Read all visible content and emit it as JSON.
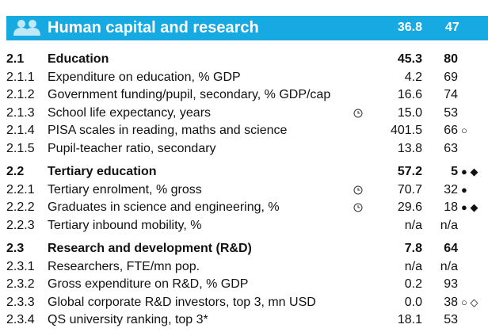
{
  "header": {
    "title": "Human capital and research",
    "score": "36.8",
    "rank": "47"
  },
  "rows": [
    {
      "code": "2.1",
      "label": "Education",
      "score": "45.3",
      "rank": "80",
      "marks": ""
    },
    {
      "code": "2.1.1",
      "label": "Expenditure on education, % GDP",
      "score": "4.2",
      "rank": "69",
      "marks": ""
    },
    {
      "code": "2.1.2",
      "label": "Government funding/pupil, secondary, % GDP/cap",
      "score": "16.6",
      "rank": "74",
      "marks": ""
    },
    {
      "code": "2.1.3",
      "label": "School life expectancy, years",
      "score": "15.0",
      "rank": "53",
      "marks": ""
    },
    {
      "code": "2.1.4",
      "label": "PISA scales in reading, maths and science",
      "score": "401.5",
      "rank": "66",
      "marks": "○"
    },
    {
      "code": "2.1.5",
      "label": "Pupil-teacher ratio, secondary",
      "score": "13.8",
      "rank": "63",
      "marks": ""
    },
    {
      "code": "2.2",
      "label": "Tertiary education",
      "score": "57.2",
      "rank": "5",
      "marks": "● ◆"
    },
    {
      "code": "2.2.1",
      "label": "Tertiary enrolment, % gross",
      "score": "70.7",
      "rank": "32",
      "marks": "●"
    },
    {
      "code": "2.2.2",
      "label": "Graduates in science and engineering, %",
      "score": "29.6",
      "rank": "18",
      "marks": "● ◆"
    },
    {
      "code": "2.2.3",
      "label": "Tertiary inbound mobility, %",
      "score": "n/a",
      "rank": "n/a",
      "marks": ""
    },
    {
      "code": "2.3",
      "label": "Research and development (R&D)",
      "score": "7.8",
      "rank": "64",
      "marks": ""
    },
    {
      "code": "2.3.1",
      "label": "Researchers, FTE/mn pop.",
      "score": "n/a",
      "rank": "n/a",
      "marks": ""
    },
    {
      "code": "2.3.2",
      "label": "Gross expenditure on R&D, % GDP",
      "score": "0.2",
      "rank": "93",
      "marks": ""
    },
    {
      "code": "2.3.3",
      "label": "Global corporate R&D investors, top 3, mn USD",
      "score": "0.0",
      "rank": "38",
      "marks": "○ ◇"
    },
    {
      "code": "2.3.4",
      "label": "QS university ranking, top 3*",
      "score": "18.1",
      "rank": "53",
      "marks": ""
    }
  ]
}
